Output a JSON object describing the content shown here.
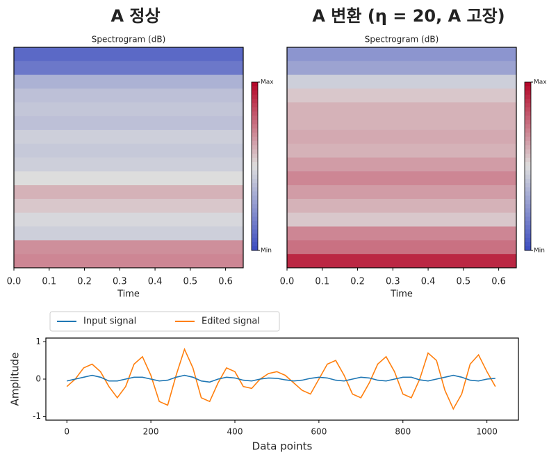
{
  "chart_data": [
    {
      "type": "heatmap",
      "title": "A 정상",
      "subtitle": "Spectrogram (dB)",
      "xlabel": "Time",
      "xlim": [
        0,
        0.65
      ],
      "xticks": [
        {
          "value": 0,
          "label": "0.0"
        },
        0.1,
        0.2,
        0.3,
        0.4,
        0.5,
        0.6
      ],
      "values": [
        0.1,
        0.15,
        0.35,
        0.4,
        0.42,
        0.4,
        0.45,
        0.43,
        0.45,
        0.5,
        0.6,
        0.55,
        0.48,
        0.45,
        0.68,
        0.7
      ],
      "clim": [
        0,
        1
      ],
      "cticks": [
        {
          "value": 1,
          "label": "Max"
        },
        {
          "value": 0,
          "label": "Min"
        }
      ]
    },
    {
      "type": "heatmap",
      "title": "A 변환 (η = 20, A 고장)",
      "subtitle": "Spectrogram (dB)",
      "xlabel": "Time",
      "xlim": [
        0,
        0.65
      ],
      "xticks": [
        {
          "value": 0,
          "label": "0.0"
        },
        0.1,
        0.2,
        0.3,
        0.4,
        0.5,
        0.6
      ],
      "values": [
        0.25,
        0.3,
        0.45,
        0.55,
        0.6,
        0.6,
        0.62,
        0.6,
        0.65,
        0.7,
        0.65,
        0.6,
        0.55,
        0.7,
        0.75,
        0.92
      ],
      "clim": [
        0,
        1
      ],
      "cticks": [
        {
          "value": 1,
          "label": "Max"
        },
        {
          "value": 0,
          "label": "Min"
        }
      ]
    },
    {
      "type": "line",
      "xlabel": "Data points",
      "ylabel": "Amplitude",
      "xlim": [
        -50,
        1075
      ],
      "xticks": [
        0,
        200,
        400,
        600,
        800,
        1000
      ],
      "ylim": [
        -1.1,
        1.1
      ],
      "yticks": [
        -1,
        0,
        1
      ],
      "x": [
        0,
        20,
        40,
        60,
        80,
        100,
        120,
        140,
        160,
        180,
        200,
        220,
        240,
        260,
        280,
        300,
        320,
        340,
        360,
        380,
        400,
        420,
        440,
        460,
        480,
        500,
        520,
        540,
        560,
        580,
        600,
        620,
        640,
        660,
        680,
        700,
        720,
        740,
        760,
        780,
        800,
        820,
        840,
        860,
        880,
        900,
        920,
        940,
        960,
        980,
        1000,
        1020
      ],
      "series": [
        {
          "name": "Input signal",
          "color": "#1f77b4",
          "values": [
            -0.05,
            0.0,
            0.05,
            0.1,
            0.05,
            -0.05,
            -0.05,
            0.0,
            0.05,
            0.05,
            0.0,
            -0.05,
            -0.03,
            0.05,
            0.1,
            0.05,
            -0.05,
            -0.08,
            0.0,
            0.05,
            0.03,
            -0.03,
            -0.05,
            0.0,
            0.03,
            0.02,
            -0.02,
            -0.05,
            -0.03,
            0.02,
            0.05,
            0.03,
            -0.03,
            -0.05,
            0.0,
            0.05,
            0.03,
            -0.03,
            -0.05,
            0.0,
            0.05,
            0.05,
            -0.02,
            -0.05,
            0.0,
            0.05,
            0.1,
            0.05,
            -0.03,
            -0.05,
            0.0,
            0.02
          ]
        },
        {
          "name": "Edited signal",
          "color": "#ff7f0e",
          "values": [
            -0.2,
            0.0,
            0.3,
            0.4,
            0.2,
            -0.2,
            -0.5,
            -0.2,
            0.4,
            0.6,
            0.1,
            -0.6,
            -0.7,
            0.1,
            0.8,
            0.3,
            -0.5,
            -0.6,
            -0.1,
            0.3,
            0.2,
            -0.2,
            -0.25,
            0.0,
            0.15,
            0.2,
            0.1,
            -0.1,
            -0.3,
            -0.4,
            0.0,
            0.4,
            0.5,
            0.1,
            -0.4,
            -0.5,
            -0.1,
            0.4,
            0.6,
            0.2,
            -0.4,
            -0.5,
            0.0,
            0.7,
            0.5,
            -0.3,
            -0.8,
            -0.4,
            0.4,
            0.65,
            0.2,
            -0.2
          ]
        }
      ]
    }
  ]
}
